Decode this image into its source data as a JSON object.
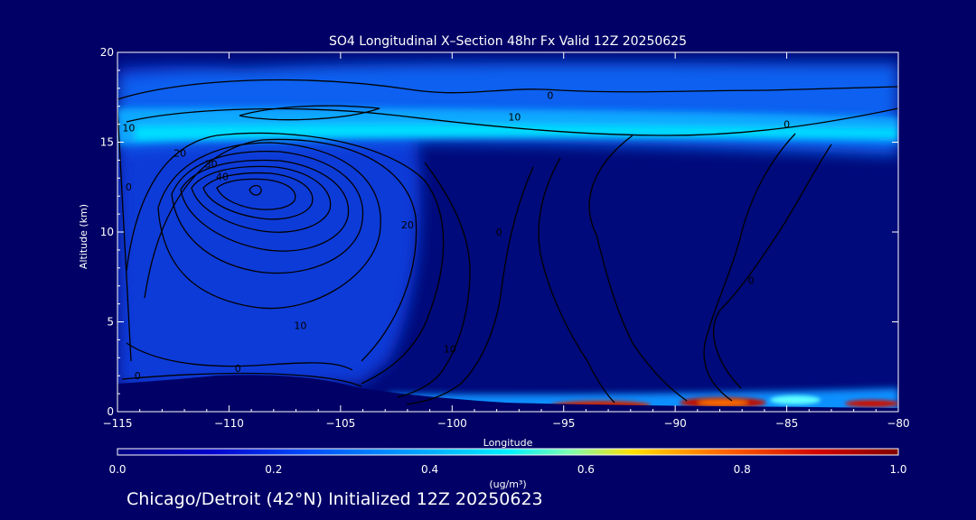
{
  "chart_data": {
    "type": "heatmap",
    "title": "SO4 Longitudinal X–Section 48hr  Fx Valid 12Z 20250625",
    "xlabel": "Longitude",
    "ylabel": "Altitude (km)",
    "xlim": [
      -115,
      -80
    ],
    "ylim": [
      0,
      20
    ],
    "x_ticks": [
      -115,
      -110,
      -105,
      -100,
      -95,
      -90,
      -85,
      -80
    ],
    "x_tick_labels": [
      "−115",
      "−110",
      "−105",
      "−100",
      "−95",
      "−90",
      "−85",
      "−80"
    ],
    "y_ticks": [
      0,
      5,
      10,
      15,
      20
    ],
    "y_tick_labels": [
      "0",
      "5",
      "10",
      "15",
      "20"
    ],
    "colorbar": {
      "min": 0.0,
      "max": 1.0,
      "ticks": [
        0.0,
        0.2,
        0.4,
        0.6,
        0.8,
        1.0
      ],
      "tick_labels": [
        "0.0",
        "0.2",
        "0.4",
        "0.6",
        "0.8",
        "1.0"
      ],
      "unit": "(ug/m³)",
      "colors": [
        "#000080",
        "#0000cd",
        "#0050ff",
        "#00a0ff",
        "#00f0ff",
        "#ffe000",
        "#ff6000",
        "#d00000",
        "#800000"
      ]
    },
    "contour_labels": [
      {
        "text": "10",
        "lon": -114.5,
        "alt": 15.6
      },
      {
        "text": "0",
        "lon": -114.5,
        "alt": 12.3
      },
      {
        "text": "20",
        "lon": -112.2,
        "alt": 14.2
      },
      {
        "text": "30",
        "lon": -110.8,
        "alt": 13.6
      },
      {
        "text": "40",
        "lon": -110.3,
        "alt": 12.9
      },
      {
        "text": "10",
        "lon": -97.2,
        "alt": 16.2
      },
      {
        "text": "0",
        "lon": -95.6,
        "alt": 17.4
      },
      {
        "text": "0",
        "lon": -85.0,
        "alt": 15.8
      },
      {
        "text": "20",
        "lon": -102.0,
        "alt": 10.2
      },
      {
        "text": "0",
        "lon": -97.9,
        "alt": 9.8
      },
      {
        "text": "0",
        "lon": -86.6,
        "alt": 7.1
      },
      {
        "text": "10",
        "lon": -106.8,
        "alt": 4.6
      },
      {
        "text": "10",
        "lon": -100.1,
        "alt": 3.3
      },
      {
        "text": "0",
        "lon": -109.6,
        "alt": 2.2
      },
      {
        "text": "0",
        "lon": -114.1,
        "alt": 1.8
      }
    ]
  },
  "footer": "Chicago/Detroit (42°N) Initialized 12Z 20250623"
}
